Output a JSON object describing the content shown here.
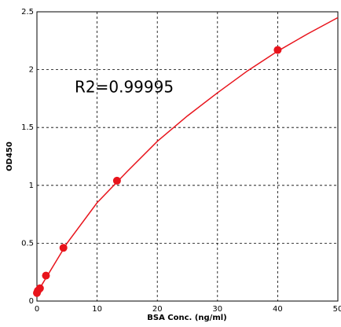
{
  "chart_data": {
    "type": "scatter",
    "xlabel": "BSA Conc. (ng/ml)",
    "ylabel": "OD450",
    "annotation": "R2=0.99995",
    "series": [
      {
        "type": "line",
        "color": "#e8141c",
        "x": [
          0,
          5,
          10,
          15,
          20,
          25,
          30,
          35,
          40,
          45,
          50
        ],
        "values": [
          0.07,
          0.5,
          0.85,
          1.12,
          1.38,
          1.6,
          1.8,
          1.99,
          2.16,
          2.31,
          2.45
        ]
      },
      {
        "type": "scatter",
        "color": "#e8141c",
        "x": [
          0,
          0.16,
          0.5,
          1.5,
          4.4,
          13.3,
          40
        ],
        "values": [
          0.07,
          0.09,
          0.11,
          0.22,
          0.46,
          1.04,
          2.17
        ]
      }
    ],
    "xlim": [
      0,
      50
    ],
    "xticks": [
      0,
      10,
      20,
      30,
      40,
      50
    ],
    "ylim": [
      0,
      2.5
    ],
    "yticks": [
      0,
      0.5,
      1,
      1.5,
      2,
      2.5
    ],
    "grid": true
  }
}
